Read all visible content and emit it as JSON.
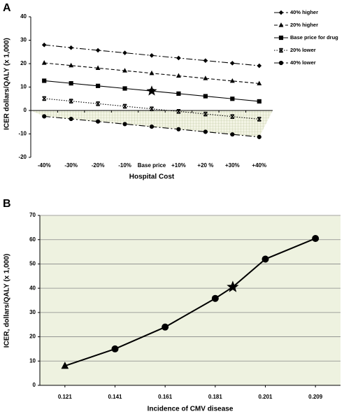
{
  "chart_data": [
    {
      "type": "line",
      "panel_label": "A",
      "y_label": "ICER dollars/QALY (x 1,000)",
      "x_label": "Hospital Cost",
      "categories": [
        "-40%",
        "-30%",
        "-20%",
        "-10%",
        "Base price",
        "+10%",
        "+20 %",
        "+30%",
        "+40%"
      ],
      "ylim": [
        -20,
        40
      ],
      "yticks": [
        -20,
        -10,
        0,
        10,
        20,
        30,
        40
      ],
      "grid": false,
      "legend": "right",
      "series": [
        {
          "name": "40% higher",
          "color": "#000000",
          "marker": "diamond",
          "dash": "dashdot",
          "values": [
            28,
            26.8,
            25.7,
            24.6,
            23.5,
            22.4,
            21.3,
            20.2,
            19.1
          ]
        },
        {
          "name": "20% higher",
          "color": "#000000",
          "marker": "triangle",
          "dash": "dashed",
          "values": [
            20.3,
            19.2,
            18.1,
            17,
            15.9,
            14.8,
            13.7,
            12.6,
            11.5
          ]
        },
        {
          "name": "Base price for drug",
          "color": "#000000",
          "marker": "square",
          "dash": "solid",
          "values": [
            12.7,
            11.6,
            10.5,
            9.4,
            8.3,
            7.2,
            6.1,
            5,
            3.9
          ]
        },
        {
          "name": "20% lower",
          "color": "#000000",
          "marker": "asterisk",
          "dash": "dotted",
          "values": [
            5.1,
            4,
            2.9,
            1.8,
            0.7,
            -0.4,
            -1.5,
            -2.6,
            -3.7
          ]
        },
        {
          "name": "40% lower",
          "color": "#000000",
          "marker": "circle",
          "dash": "dashdot",
          "values": [
            -2.5,
            -3.6,
            -4.7,
            -5.8,
            -6.9,
            -8,
            -9.1,
            -10.2,
            -11.3
          ]
        }
      ]
    },
    {
      "type": "line",
      "panel_label": "B",
      "y_label": "ICER, dollars/QALY (x 1,000)",
      "x_label": "Incidence of CMV disease",
      "xticks": [
        0.121,
        0.141,
        0.161,
        0.181,
        0.201,
        0.209
      ],
      "ylim": [
        0,
        70
      ],
      "yticks": [
        0,
        10,
        20,
        30,
        40,
        50,
        60,
        70
      ],
      "grid": true,
      "background": "#eef2e0",
      "series": [
        {
          "color": "#000000",
          "markers": [
            "triangle",
            "circle",
            "circle",
            "circle",
            "star",
            "circle",
            "circle"
          ],
          "x": [
            0.121,
            0.141,
            0.161,
            0.181,
            0.188,
            0.201,
            0.209
          ],
          "values": [
            8,
            15,
            24,
            35.8,
            40.5,
            52,
            60.5
          ]
        }
      ]
    }
  ]
}
